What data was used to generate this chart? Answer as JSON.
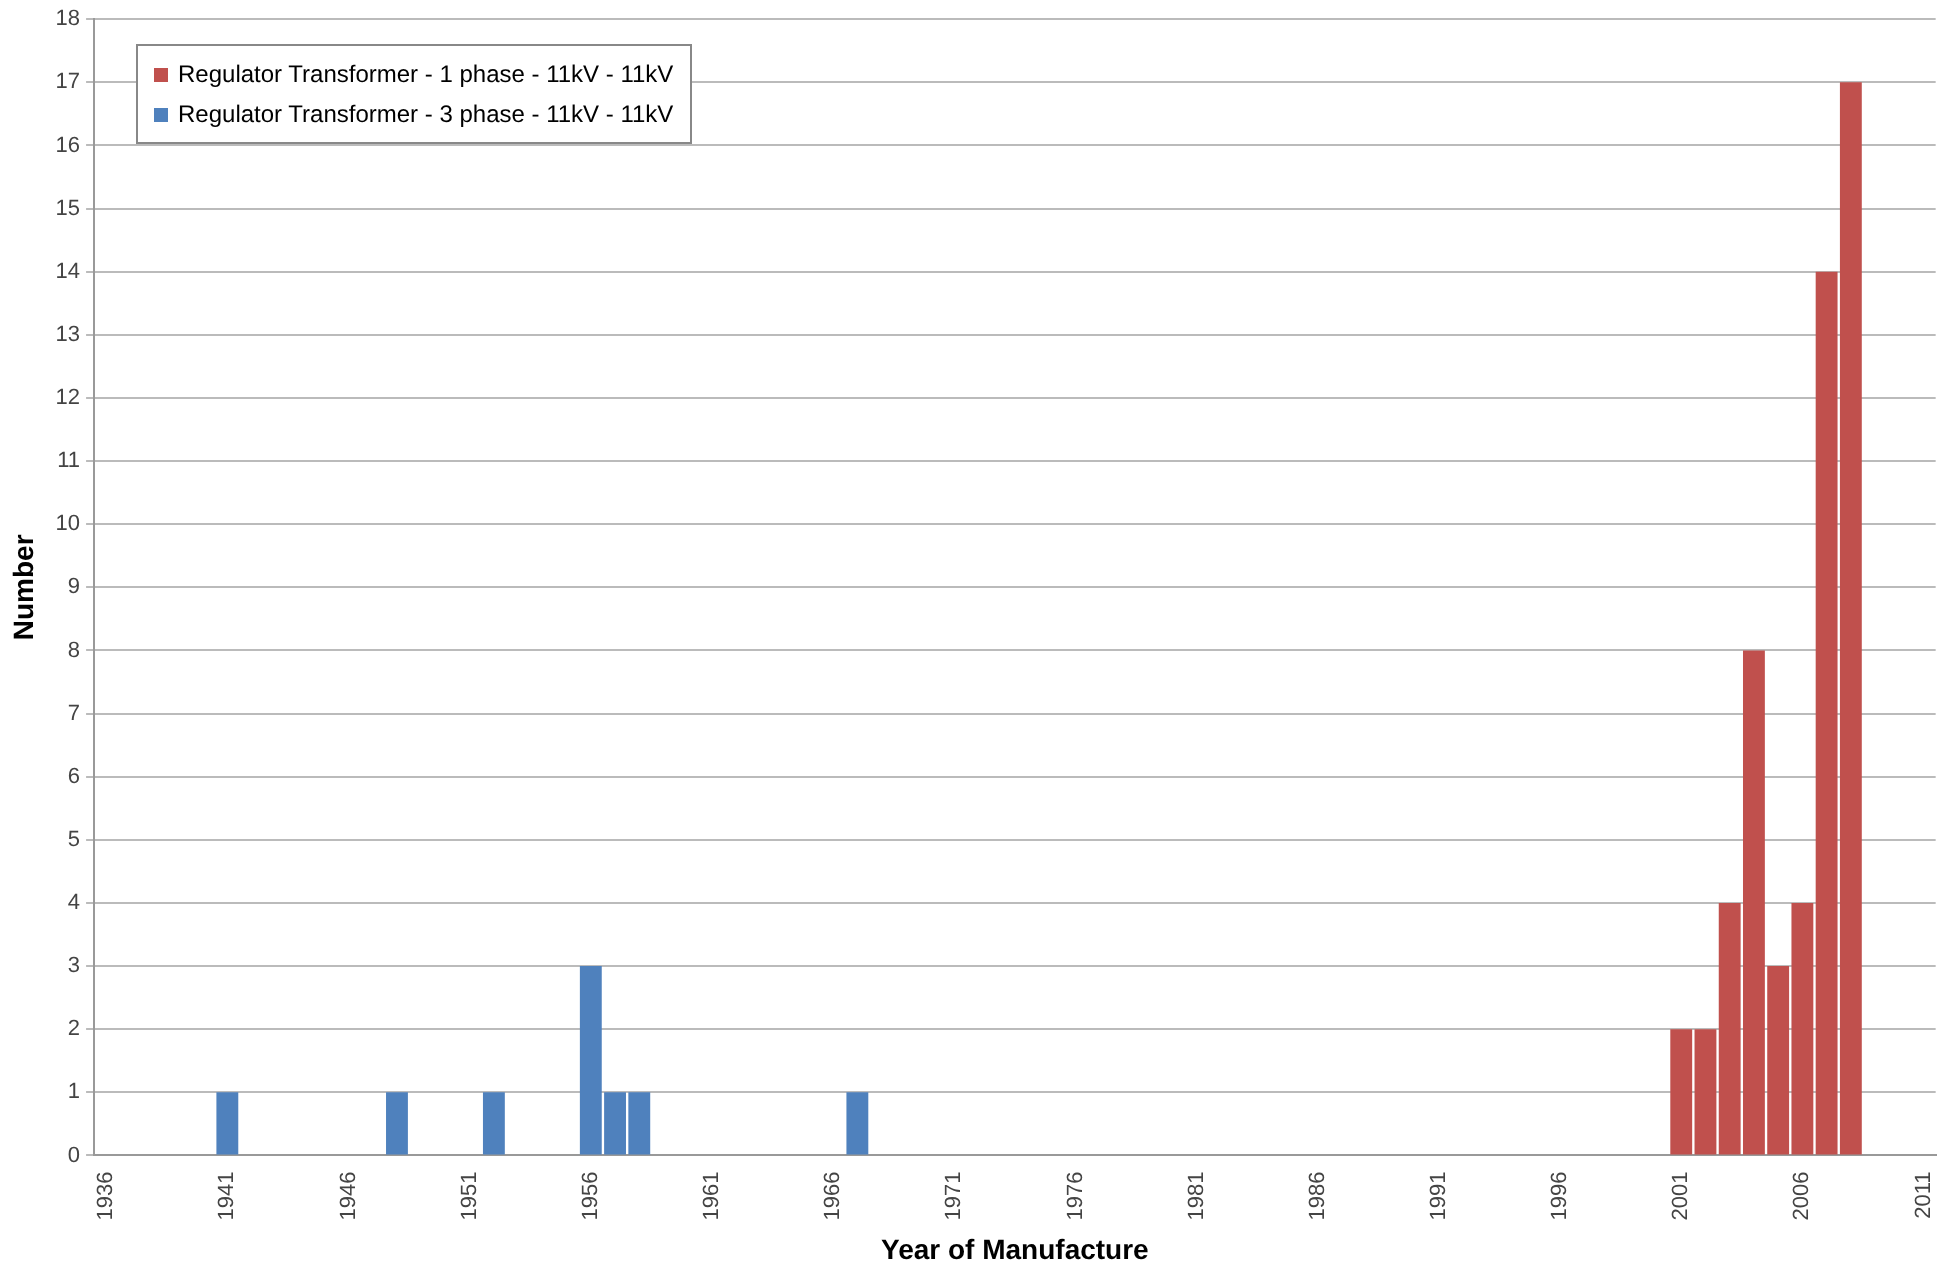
{
  "chart_data": {
    "type": "bar",
    "xlabel": "Year of Manufacture",
    "ylabel": "Number",
    "categories": [
      "1936",
      null,
      null,
      null,
      null,
      "1941",
      null,
      null,
      null,
      null,
      "1946",
      null,
      null,
      null,
      null,
      "1951",
      null,
      null,
      null,
      null,
      "1956",
      null,
      null,
      null,
      null,
      "1961",
      null,
      null,
      null,
      null,
      "1966",
      null,
      null,
      null,
      null,
      "1971",
      null,
      null,
      null,
      null,
      "1976",
      null,
      null,
      null,
      null,
      "1981",
      null,
      null,
      null,
      null,
      "1986",
      null,
      null,
      null,
      null,
      "1991",
      null,
      null,
      null,
      null,
      "1996",
      null,
      null,
      null,
      null,
      "2001",
      null,
      null,
      null,
      null,
      "2006",
      null,
      null,
      null,
      null,
      "2011"
    ],
    "series": [
      {
        "name": "Regulator Transformer - 1 phase - 11kV - 11kV",
        "color": "#c0504d",
        "values": [
          null,
          null,
          null,
          null,
          null,
          null,
          null,
          null,
          null,
          null,
          null,
          null,
          null,
          null,
          null,
          null,
          null,
          null,
          null,
          null,
          null,
          null,
          null,
          null,
          null,
          null,
          null,
          null,
          null,
          null,
          null,
          null,
          null,
          null,
          null,
          null,
          null,
          null,
          null,
          null,
          null,
          null,
          null,
          null,
          null,
          null,
          null,
          null,
          null,
          null,
          null,
          null,
          null,
          null,
          null,
          null,
          null,
          null,
          null,
          null,
          null,
          null,
          null,
          null,
          null,
          2,
          2,
          4,
          8,
          3,
          4,
          14,
          17,
          null,
          null,
          null
        ]
      },
      {
        "name": "Regulator Transformer - 3 phase - 11kV - 11kV",
        "color": "#4f81bd",
        "values": [
          null,
          null,
          null,
          null,
          null,
          1,
          null,
          null,
          null,
          null,
          null,
          null,
          1,
          null,
          null,
          null,
          1,
          null,
          null,
          null,
          3,
          1,
          1,
          null,
          null,
          null,
          null,
          null,
          null,
          null,
          null,
          1,
          null,
          null,
          null,
          null,
          null,
          null,
          null,
          null,
          null,
          null,
          null,
          null,
          null,
          null,
          null,
          null,
          null,
          null,
          null,
          null,
          null,
          null,
          null,
          null,
          null,
          null,
          null,
          null,
          null,
          null,
          null,
          null,
          null,
          null,
          null,
          null,
          null,
          null,
          null,
          null,
          null,
          null,
          null,
          null
        ]
      }
    ],
    "stacked": true,
    "ylim": [
      0,
      18
    ],
    "yticks": [
      0,
      1,
      2,
      3,
      4,
      5,
      6,
      7,
      8,
      9,
      10,
      11,
      12,
      13,
      14,
      15,
      16,
      17,
      18
    ],
    "grid": "y",
    "legend": "top left"
  }
}
